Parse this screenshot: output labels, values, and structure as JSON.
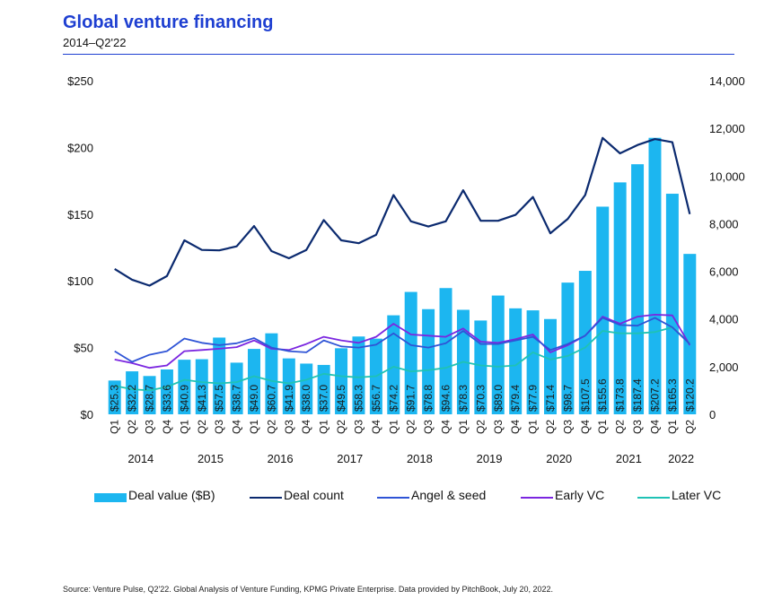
{
  "header": {
    "title": "Global venture financing",
    "subtitle": "2014–Q2'22"
  },
  "source": "Source: Venture Pulse, Q2'22. Global Analysis of Venture Funding, KPMG Private Enterprise. Data provided by PitchBook, July 20, 2022.",
  "colors": {
    "deal_value": "#1cb6f0",
    "deal_count": "#0b2a6f",
    "angel_seed": "#2f54d6",
    "early_vc": "#7b26e0",
    "later_vc": "#1fc2b5",
    "title": "#1e3fd1"
  },
  "chart_data": {
    "type": "bar",
    "categories": [
      "Q1",
      "Q2",
      "Q3",
      "Q4",
      "Q1",
      "Q2",
      "Q3",
      "Q4",
      "Q1",
      "Q2",
      "Q3",
      "Q4",
      "Q1",
      "Q2",
      "Q3",
      "Q4",
      "Q1",
      "Q2",
      "Q3",
      "Q4",
      "Q1",
      "Q2",
      "Q3",
      "Q4",
      "Q1",
      "Q2",
      "Q3",
      "Q4",
      "Q1",
      "Q2",
      "Q3",
      "Q4",
      "Q1",
      "Q2"
    ],
    "year_groups": [
      {
        "label": "2014",
        "start": 0,
        "end": 3
      },
      {
        "label": "2015",
        "start": 4,
        "end": 7
      },
      {
        "label": "2016",
        "start": 8,
        "end": 11
      },
      {
        "label": "2017",
        "start": 12,
        "end": 15
      },
      {
        "label": "2018",
        "start": 16,
        "end": 19
      },
      {
        "label": "2019",
        "start": 20,
        "end": 23
      },
      {
        "label": "2020",
        "start": 24,
        "end": 27
      },
      {
        "label": "2021",
        "start": 28,
        "end": 31
      },
      {
        "label": "2022",
        "start": 32,
        "end": 33
      }
    ],
    "left_axis": {
      "ylim": [
        0,
        250
      ],
      "ticks": [
        0,
        50,
        100,
        150,
        200,
        250
      ],
      "tick_labels": [
        "$0",
        "$50",
        "$100",
        "$150",
        "$200",
        "$250"
      ]
    },
    "right_axis": {
      "ylim": [
        0,
        14000
      ],
      "ticks": [
        0,
        2000,
        4000,
        6000,
        8000,
        10000,
        12000,
        14000
      ],
      "tick_labels": [
        "0",
        "2,000",
        "4,000",
        "6,000",
        "8,000",
        "10,000",
        "12,000",
        "14,000"
      ]
    },
    "bars": {
      "name": "Deal value ($B)",
      "axis": "left",
      "values": [
        25.3,
        32.2,
        28.7,
        33.6,
        40.9,
        41.3,
        57.5,
        38.7,
        49.0,
        60.7,
        41.9,
        38.0,
        37.0,
        49.5,
        58.3,
        56.7,
        74.2,
        91.7,
        78.8,
        94.6,
        78.3,
        70.3,
        89.0,
        79.4,
        77.9,
        71.4,
        98.7,
        107.5,
        155.6,
        173.8,
        187.4,
        207.2,
        165.3,
        120.2
      ],
      "labels": [
        "$25.3",
        "$32.2",
        "$28.7",
        "$33.6",
        "$40.9",
        "$41.3",
        "$57.5",
        "$38.7",
        "$49.0",
        "$60.7",
        "$41.9",
        "$38.0",
        "$37.0",
        "$49.5",
        "$58.3",
        "$56.7",
        "$74.2",
        "$91.7",
        "$78.8",
        "$94.6",
        "$78.3",
        "$70.3",
        "$89.0",
        "$79.4",
        "$77.9",
        "$71.4",
        "$98.7",
        "$107.5",
        "$155.6",
        "$173.8",
        "$187.4",
        "$207.2",
        "$165.3",
        "$120.2"
      ]
    },
    "series": [
      {
        "name": "Deal count",
        "axis": "right",
        "values": [
          6100,
          5650,
          5400,
          5800,
          7300,
          6900,
          6880,
          7050,
          7900,
          6850,
          6550,
          6900,
          8150,
          7300,
          7180,
          7530,
          9200,
          8100,
          7880,
          8100,
          9400,
          8120,
          8120,
          8370,
          9120,
          7600,
          8200,
          9200,
          11600,
          10950,
          11300,
          11550,
          11420,
          8400
        ]
      },
      {
        "name": "Angel & seed",
        "axis": "right",
        "values": [
          2650,
          2200,
          2500,
          2650,
          3180,
          3000,
          2900,
          2980,
          3200,
          2800,
          2650,
          2600,
          3100,
          2850,
          2800,
          2920,
          3400,
          2900,
          2800,
          2980,
          3500,
          2950,
          2950,
          3100,
          3250,
          2700,
          2950,
          3300,
          4050,
          3750,
          3720,
          4050,
          3650,
          2950
        ]
      },
      {
        "name": "Early VC",
        "axis": "right",
        "values": [
          2300,
          2150,
          1950,
          2050,
          2650,
          2700,
          2750,
          2820,
          3100,
          2750,
          2700,
          2950,
          3250,
          3100,
          3000,
          3250,
          3800,
          3350,
          3300,
          3250,
          3600,
          3050,
          3000,
          3150,
          3350,
          2600,
          2900,
          3300,
          4100,
          3800,
          4100,
          4180,
          4150,
          2900
        ]
      },
      {
        "name": "Later VC",
        "axis": "right",
        "values": [
          1200,
          1050,
          1000,
          1150,
          1450,
          1350,
          1300,
          1350,
          1600,
          1400,
          1300,
          1450,
          1700,
          1600,
          1550,
          1600,
          2000,
          1800,
          1850,
          1950,
          2200,
          2050,
          2000,
          2050,
          2600,
          2300,
          2450,
          2800,
          3500,
          3400,
          3400,
          3450,
          3650,
          3000
        ]
      }
    ],
    "legend": {
      "placement": "bottom",
      "items": [
        "Deal value ($B)",
        "Deal count",
        "Angel & seed",
        "Early VC",
        "Later VC"
      ]
    }
  }
}
